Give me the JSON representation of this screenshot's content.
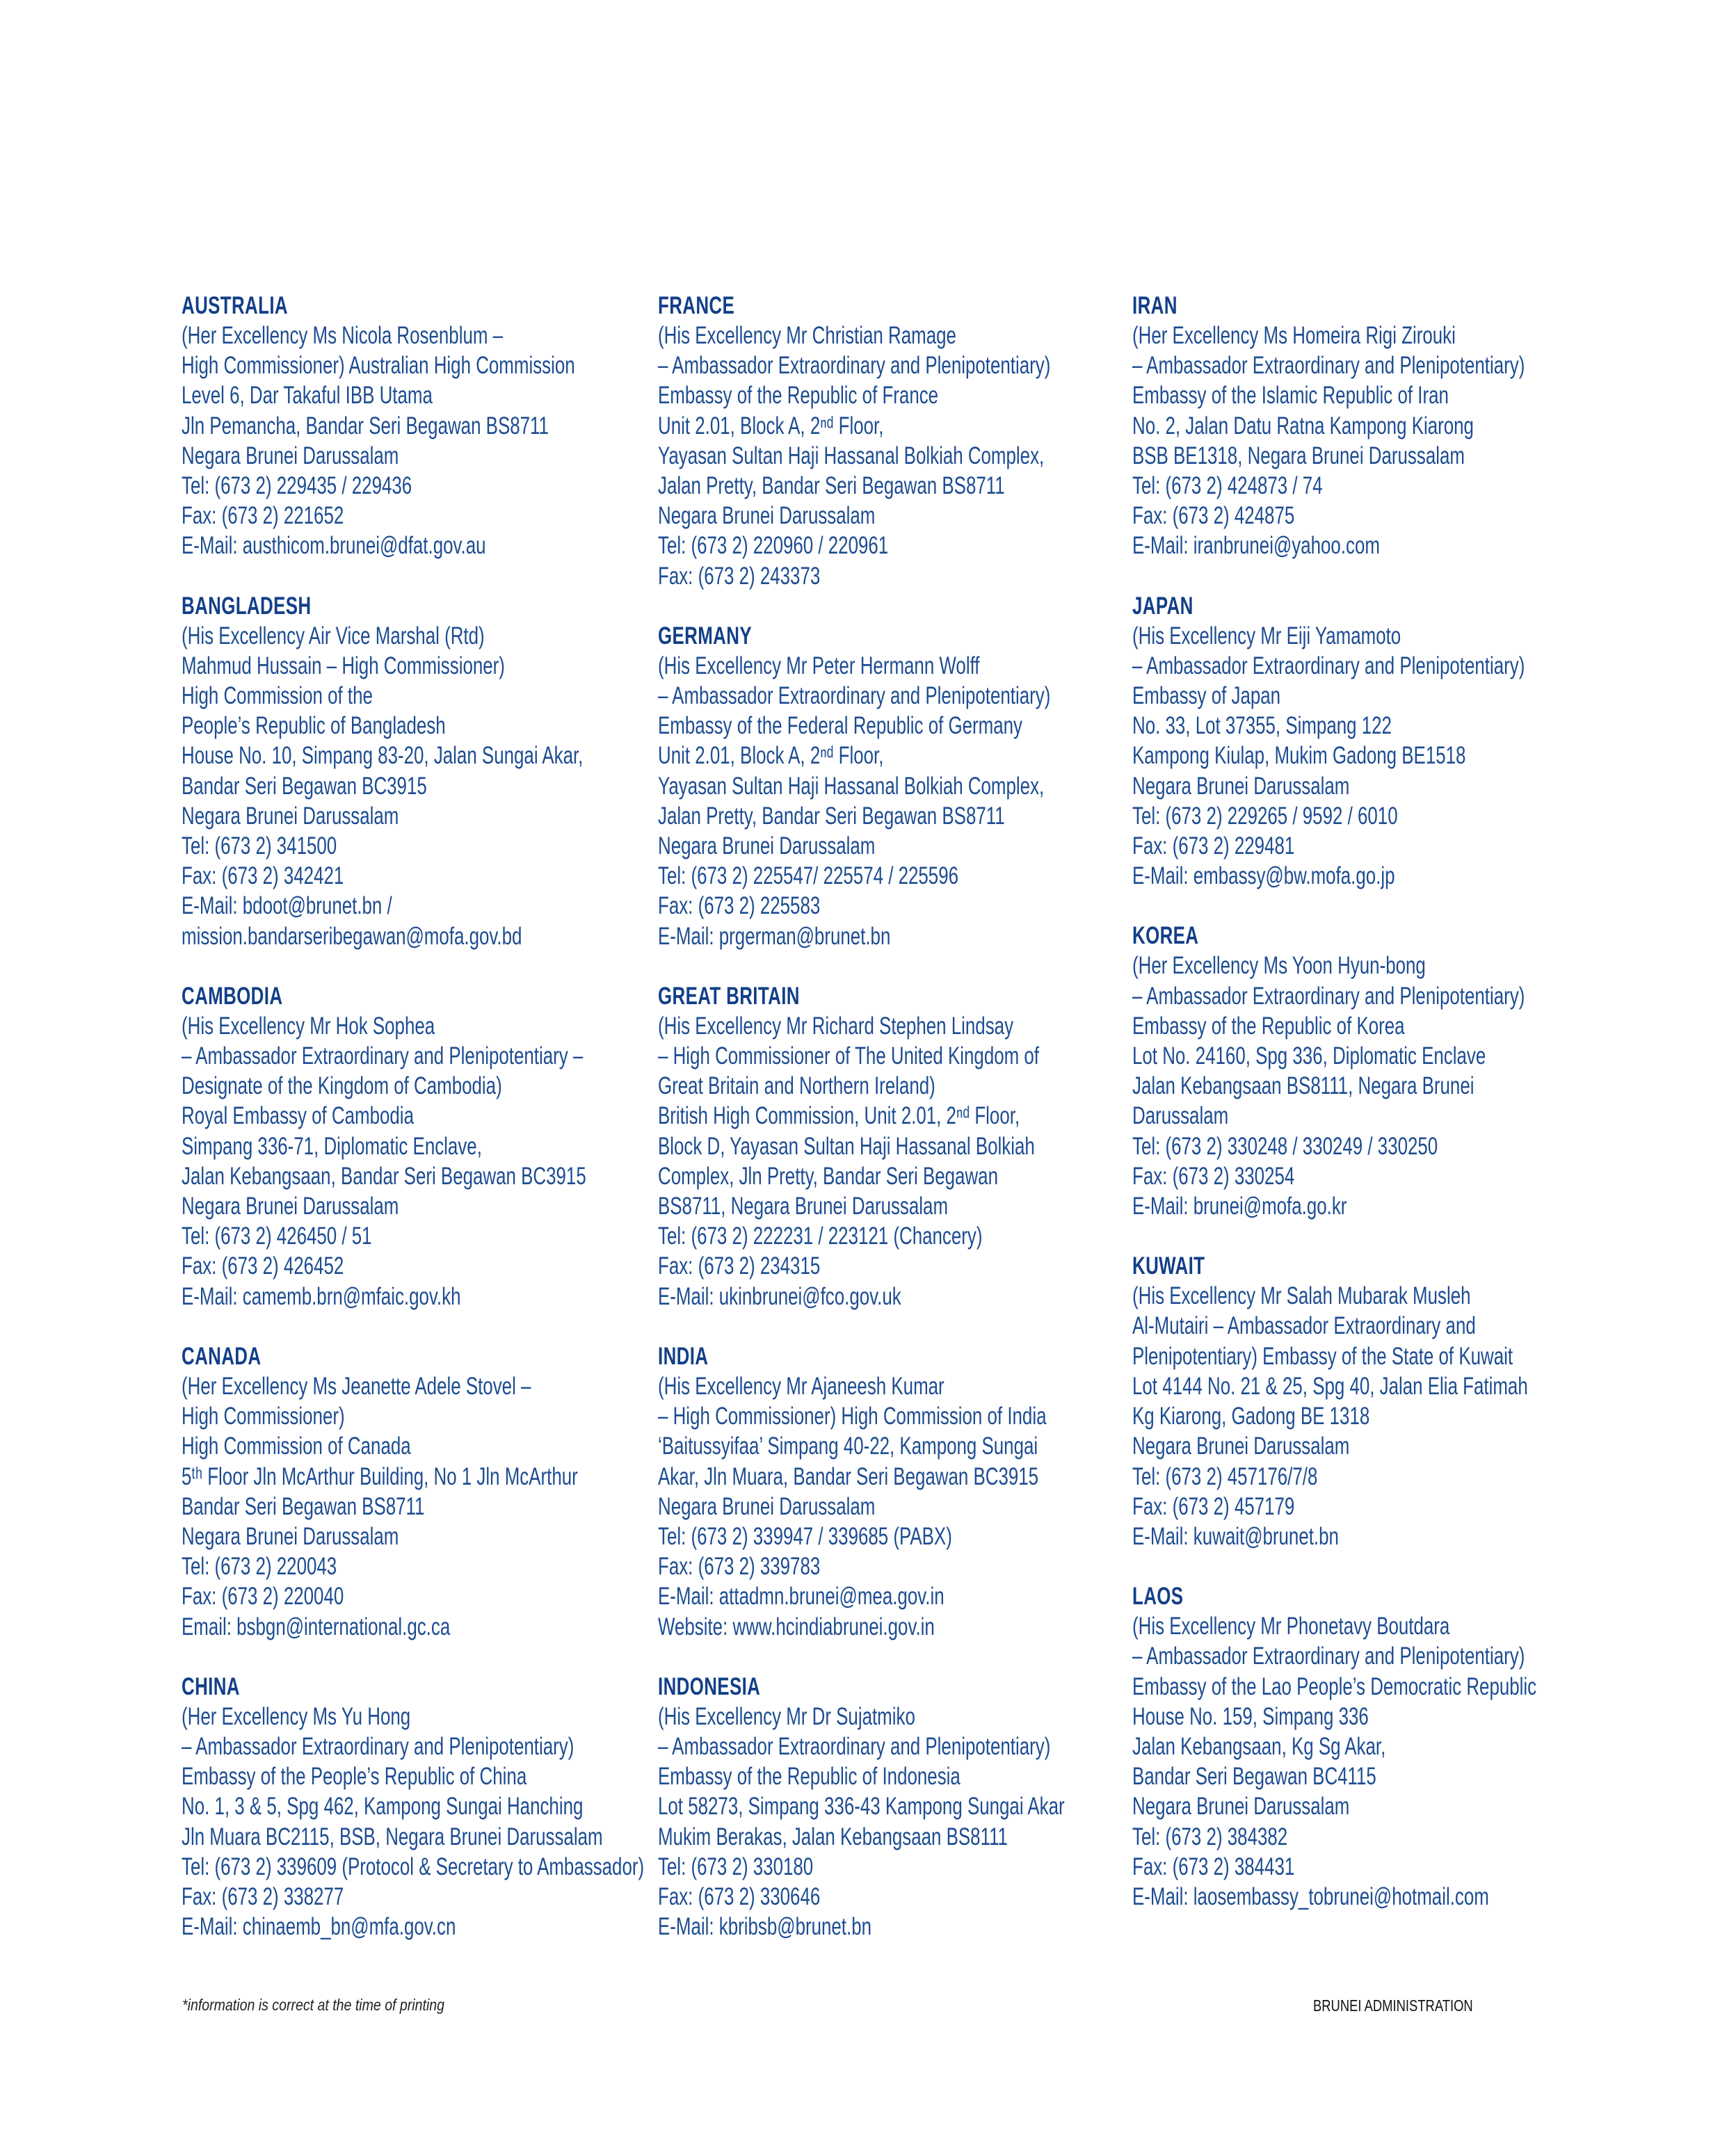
{
  "columns": [
    [
      {
        "country": "AUSTRALIA",
        "lines": [
          "(Her Excellency Ms Nicola Rosenblum –",
          "High Commissioner) Australian High Commission",
          "Level 6, Dar Takaful IBB Utama",
          "Jln Pemancha, Bandar Seri Begawan BS8711",
          "Negara Brunei Darussalam",
          "Tel: (673 2) 229435 / 229436",
          "Fax: (673 2) 221652",
          "E-Mail: austhicom.brunei@dfat.gov.au"
        ]
      },
      {
        "country": "BANGLADESH",
        "lines": [
          "(His Excellency Air Vice Marshal (Rtd)",
          "Mahmud Hussain – High Commissioner)",
          "High Commission of the",
          "People’s Republic of Bangladesh",
          "House No. 10, Simpang 83-20, Jalan Sungai Akar,",
          "Bandar Seri Begawan BC3915",
          "Negara Brunei Darussalam",
          "Tel: (673 2) 341500",
          "Fax: (673 2) 342421",
          "E-Mail: bdoot@brunet.bn /",
          "mission.bandarseribegawan@mofa.gov.bd"
        ]
      },
      {
        "country": "CAMBODIA",
        "lines": [
          "(His Excellency Mr Hok Sophea",
          "– Ambassador Extraordinary and Plenipotentiary –",
          "Designate of the Kingdom of Cambodia)",
          "Royal Embassy of Cambodia",
          "Simpang 336-71, Diplomatic Enclave,",
          "Jalan Kebangsaan, Bandar Seri Begawan BC3915",
          "Negara Brunei Darussalam",
          "Tel: (673 2) 426450 / 51",
          "Fax: (673 2) 426452",
          "E-Mail: camemb.brn@mfaic.gov.kh"
        ]
      },
      {
        "country": "CANADA",
        "lines": [
          "(Her Excellency Ms Jeanette Adele Stovel –",
          "High Commissioner)",
          "High Commission of Canada",
          "5ᵗʰ Floor Jln McArthur Building, No 1 Jln McArthur",
          "Bandar Seri Begawan BS8711",
          "Negara Brunei Darussalam",
          "Tel: (673 2) 220043",
          "Fax: (673 2) 220040",
          "Email: bsbgn@international.gc.ca"
        ]
      },
      {
        "country": "CHINA",
        "lines": [
          "(Her Excellency Ms Yu Hong",
          "– Ambassador Extraordinary and Plenipotentiary)",
          "Embassy of the People’s Republic of China",
          "No. 1, 3 & 5, Spg 462, Kampong Sungai Hanching",
          "Jln Muara BC2115, BSB, Negara Brunei Darussalam",
          "Tel: (673 2) 339609 (Protocol & Secretary to Ambassador)",
          "Fax: (673 2) 338277",
          "E-Mail: chinaemb_bn@mfa.gov.cn"
        ]
      }
    ],
    [
      {
        "country": "FRANCE",
        "lines": [
          "(His Excellency Mr Christian Ramage",
          "– Ambassador Extraordinary and Plenipotentiary)",
          "Embassy of the Republic of France",
          "Unit 2.01, Block A, 2ⁿᵈ Floor,",
          "Yayasan Sultan Haji Hassanal Bolkiah Complex,",
          "Jalan Pretty, Bandar Seri Begawan BS8711",
          "Negara Brunei Darussalam",
          "Tel: (673 2) 220960 / 220961",
          "Fax: (673 2) 243373"
        ]
      },
      {
        "country": "GERMANY",
        "lines": [
          "(His Excellency Mr Peter Hermann Wolff",
          "– Ambassador Extraordinary and Plenipotentiary)",
          "Embassy of the Federal Republic of Germany",
          "Unit 2.01, Block A, 2ⁿᵈ Floor,",
          "Yayasan Sultan Haji Hassanal Bolkiah Complex,",
          "Jalan Pretty, Bandar Seri Begawan BS8711",
          "Negara Brunei Darussalam",
          "Tel: (673 2) 225547/ 225574 / 225596",
          "Fax: (673 2) 225583",
          "E-Mail: prgerman@brunet.bn"
        ]
      },
      {
        "country": "GREAT BRITAIN",
        "lines": [
          "(His Excellency Mr Richard Stephen Lindsay",
          "– High Commissioner of The United Kingdom of",
          "Great Britain and Northern Ireland)",
          "British High Commission, Unit 2.01, 2ⁿᵈ Floor,",
          "Block D, Yayasan Sultan Haji Hassanal Bolkiah",
          "Complex, Jln Pretty, Bandar Seri Begawan",
          "BS8711, Negara Brunei Darussalam",
          "Tel: (673 2) 222231 / 223121 (Chancery)",
          "Fax: (673 2) 234315",
          "E-Mail: ukinbrunei@fco.gov.uk"
        ]
      },
      {
        "country": "INDIA",
        "lines": [
          "(His Excellency Mr Ajaneesh Kumar",
          "– High Commissioner) High Commission of India",
          "‘Baitussyifaa’ Simpang 40-22, Kampong  Sungai",
          "Akar, Jln Muara, Bandar Seri Begawan BC3915",
          "Negara Brunei Darussalam",
          "Tel: (673 2) 339947 / 339685 (PABX)",
          "Fax: (673 2) 339783",
          "E-Mail: attadmn.brunei@mea.gov.in",
          "Website: www.hcindiabrunei.gov.in"
        ]
      },
      {
        "country": "INDONESIA",
        "lines": [
          "(His Excellency Mr Dr Sujatmiko",
          "– Ambassador Extraordinary and Plenipotentiary)",
          "Embassy of the Republic of Indonesia",
          "Lot 58273, Simpang 336-43 Kampong Sungai Akar",
          "Mukim Berakas, Jalan Kebangsaan BS8111",
          "Tel: (673 2) 330180",
          "Fax: (673 2) 330646",
          "E-Mail: kbribsb@brunet.bn"
        ]
      }
    ],
    [
      {
        "country": "IRAN",
        "lines": [
          "(Her Excellency Ms Homeira Rigi Zirouki",
          "– Ambassador Extraordinary and Plenipotentiary)",
          "Embassy of the Islamic Republic of Iran",
          "No. 2, Jalan Datu Ratna Kampong Kiarong",
          "BSB BE1318, Negara Brunei Darussalam",
          "Tel: (673 2) 424873 / 74",
          "Fax: (673 2) 424875",
          "E-Mail: iranbrunei@yahoo.com"
        ]
      },
      {
        "country": "JAPAN",
        "lines": [
          "(His Excellency Mr Eiji Yamamoto",
          "– Ambassador Extraordinary and Plenipotentiary)",
          "Embassy of Japan",
          "No. 33, Lot 37355, Simpang 122",
          "Kampong Kiulap, Mukim Gadong BE1518",
          "Negara Brunei Darussalam",
          "Tel: (673 2) 229265 / 9592 / 6010",
          "Fax: (673 2) 229481",
          "E-Mail: embassy@bw.mofa.go.jp"
        ]
      },
      {
        "country": "KOREA",
        "lines": [
          "(Her Excellency Ms Yoon Hyun-bong",
          "– Ambassador Extraordinary and Plenipotentiary)",
          "Embassy of the Republic of Korea",
          "Lot No. 24160, Spg 336, Diplomatic Enclave",
          "Jalan Kebangsaan BS8111, Negara Brunei",
          "Darussalam",
          "Tel: (673 2) 330248 / 330249 / 330250",
          "Fax: (673 2) 330254",
          "E-Mail: brunei@mofa.go.kr"
        ]
      },
      {
        "country": "KUWAIT",
        "lines": [
          "(His Excellency Mr Salah Mubarak Musleh",
          "Al-Mutairi – Ambassador Extraordinary and",
          "Plenipotentiary) Embassy of the State of Kuwait",
          "Lot 4144 No. 21 & 25, Spg 40, Jalan Elia Fatimah",
          "Kg Kiarong, Gadong BE 1318",
          "Negara Brunei Darussalam",
          "Tel: (673 2) 457176/7/8",
          "Fax: (673 2) 457179",
          "E-Mail: kuwait@brunet.bn"
        ]
      },
      {
        "country": "LAOS",
        "lines": [
          "(His Excellency Mr Phonetavy Boutdara",
          "– Ambassador Extraordinary and Plenipotentiary)",
          "Embassy of the Lao People’s Democratic Republic",
          "House No. 159, Simpang 336",
          "Jalan Kebangsaan, Kg Sg Akar,",
          "Bandar Seri Begawan BC4115",
          "Negara Brunei Darussalam",
          "Tel: (673 2) 384382",
          "Fax: (673 2) 384431",
          "E-Mail: laosembassy_tobrunei@hotmail.com"
        ]
      }
    ]
  ],
  "footer": {
    "note": "*information is correct at the time of printing",
    "section": "BRUNEI ADMINISTRATION"
  },
  "colors": {
    "text": "#1d4c91",
    "heading": "#123f88"
  }
}
